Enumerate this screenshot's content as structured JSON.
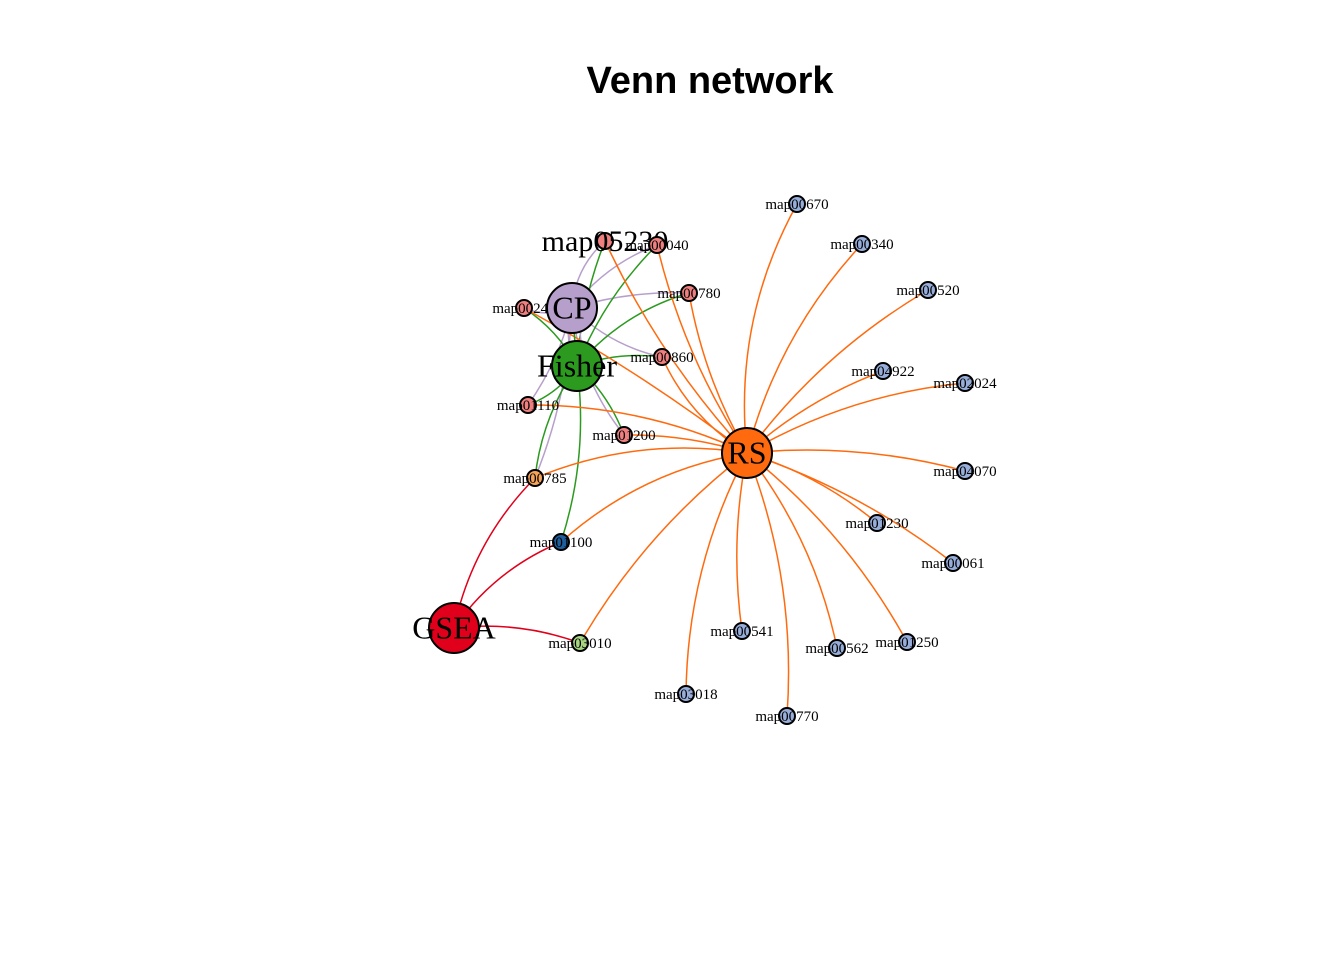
{
  "title": "Venn network",
  "colors": {
    "CP": "#B79FCB",
    "Fisher": "#2B9A1F",
    "RS": "#FF6A0E",
    "GSEA": "#E0001B",
    "red_pathway": "#F08080",
    "blue_pathway": "#98AEDA",
    "orange_pathway": "#F7A45A",
    "darkblue_pathway": "#1F5E9C",
    "green_pathway": "#A8D581"
  },
  "hubs": [
    {
      "id": "CP",
      "label": "CP",
      "color": "#B79FCB"
    },
    {
      "id": "Fisher",
      "label": "Fisher",
      "color": "#2B9A1F"
    },
    {
      "id": "RS",
      "label": "RS",
      "color": "#FF6A0E"
    },
    {
      "id": "GSEA",
      "label": "GSEA",
      "color": "#E0001B"
    }
  ],
  "pathways": [
    {
      "id": "map05230",
      "label": "map05230",
      "color": "#F08080",
      "hubs": [
        "CP",
        "Fisher",
        "RS"
      ]
    },
    {
      "id": "map00040",
      "label": "map00040",
      "color": "#F08080",
      "hubs": [
        "CP",
        "Fisher",
        "RS"
      ]
    },
    {
      "id": "map00780",
      "label": "map00780",
      "color": "#F08080",
      "hubs": [
        "CP",
        "Fisher",
        "RS"
      ]
    },
    {
      "id": "map00240",
      "label": "map00240",
      "color": "#F08080",
      "hubs": [
        "CP",
        "Fisher",
        "RS"
      ]
    },
    {
      "id": "map00860",
      "label": "map00860",
      "color": "#F08080",
      "hubs": [
        "CP",
        "Fisher",
        "RS"
      ]
    },
    {
      "id": "map01110",
      "label": "map01110",
      "color": "#F08080",
      "hubs": [
        "CP",
        "Fisher",
        "RS"
      ]
    },
    {
      "id": "map01200",
      "label": "map01200",
      "color": "#F08080",
      "hubs": [
        "CP",
        "Fisher",
        "RS"
      ]
    },
    {
      "id": "map00785",
      "label": "map00785",
      "color": "#F7A45A",
      "hubs": [
        "CP",
        "Fisher",
        "RS",
        "GSEA"
      ]
    },
    {
      "id": "map01100",
      "label": "map01100",
      "color": "#1F5E9C",
      "hubs": [
        "Fisher",
        "RS",
        "GSEA"
      ]
    },
    {
      "id": "map03010",
      "label": "map03010",
      "color": "#A8D581",
      "hubs": [
        "RS",
        "GSEA"
      ]
    },
    {
      "id": "map00670",
      "label": "map00670",
      "color": "#98AEDA",
      "hubs": [
        "RS"
      ]
    },
    {
      "id": "map00340",
      "label": "map00340",
      "color": "#98AEDA",
      "hubs": [
        "RS"
      ]
    },
    {
      "id": "map00520",
      "label": "map00520",
      "color": "#98AEDA",
      "hubs": [
        "RS"
      ]
    },
    {
      "id": "map04922",
      "label": "map04922",
      "color": "#98AEDA",
      "hubs": [
        "RS"
      ]
    },
    {
      "id": "map02024",
      "label": "map02024",
      "color": "#98AEDA",
      "hubs": [
        "RS"
      ]
    },
    {
      "id": "map04070",
      "label": "map04070",
      "color": "#98AEDA",
      "hubs": [
        "RS"
      ]
    },
    {
      "id": "map01230",
      "label": "map01230",
      "color": "#98AEDA",
      "hubs": [
        "RS"
      ]
    },
    {
      "id": "map00061",
      "label": "map00061",
      "color": "#98AEDA",
      "hubs": [
        "RS"
      ]
    },
    {
      "id": "map01250",
      "label": "map01250",
      "color": "#98AEDA",
      "hubs": [
        "RS"
      ]
    },
    {
      "id": "map00562",
      "label": "map00562",
      "color": "#98AEDA",
      "hubs": [
        "RS"
      ]
    },
    {
      "id": "map00770",
      "label": "map00770",
      "color": "#98AEDA",
      "hubs": [
        "RS"
      ]
    },
    {
      "id": "map00541",
      "label": "map00541",
      "color": "#98AEDA",
      "hubs": [
        "RS"
      ]
    },
    {
      "id": "map03018",
      "label": "map03018",
      "color": "#98AEDA",
      "hubs": [
        "RS"
      ]
    }
  ]
}
